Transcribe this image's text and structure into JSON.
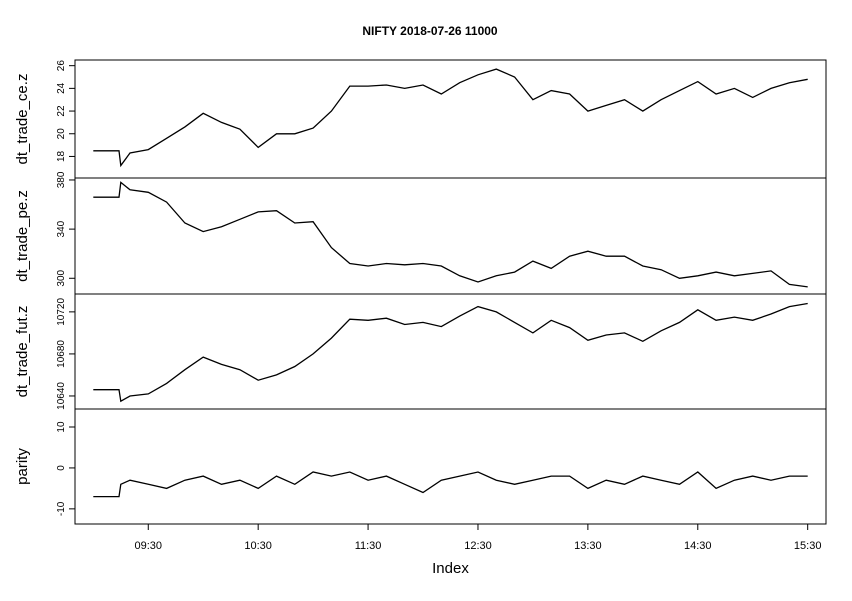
{
  "chart_data": [
    {
      "type": "line",
      "title": "NIFTY 2018-07-26 11000",
      "ylabel": "dt_trade_ce.z",
      "color": "#000000",
      "x": [
        "09:00",
        "09:14",
        "09:15",
        "09:20",
        "09:30",
        "09:40",
        "09:50",
        "10:00",
        "10:10",
        "10:20",
        "10:30",
        "10:40",
        "10:50",
        "11:00",
        "11:10",
        "11:20",
        "11:30",
        "11:40",
        "11:50",
        "12:00",
        "12:10",
        "12:20",
        "12:30",
        "12:40",
        "12:50",
        "13:00",
        "13:10",
        "13:20",
        "13:30",
        "13:40",
        "13:50",
        "14:00",
        "14:10",
        "14:20",
        "14:30",
        "14:40",
        "14:50",
        "15:00",
        "15:10",
        "15:20",
        "15:30"
      ],
      "values": [
        18.5,
        18.5,
        17.2,
        18.3,
        18.6,
        19.6,
        20.6,
        21.8,
        21.0,
        20.4,
        18.8,
        20.0,
        20.0,
        20.5,
        22.0,
        24.2,
        24.2,
        24.3,
        24.0,
        24.3,
        23.5,
        24.5,
        25.2,
        25.7,
        25.0,
        23.0,
        23.8,
        23.5,
        22.0,
        22.5,
        23.0,
        22.0,
        23.0,
        23.8,
        24.6,
        23.5,
        24.0,
        23.2,
        24.0,
        24.5,
        24.8
      ],
      "xlim": [
        "08:50",
        "15:40"
      ],
      "ylim": [
        16.1,
        26.5
      ],
      "yticks": [
        18,
        20,
        22,
        24,
        26
      ]
    },
    {
      "type": "line",
      "ylabel": "dt_trade_pe.z",
      "color": "#000000",
      "x": [
        "09:00",
        "09:14",
        "09:15",
        "09:20",
        "09:30",
        "09:40",
        "09:50",
        "10:00",
        "10:10",
        "10:20",
        "10:30",
        "10:40",
        "10:50",
        "11:00",
        "11:10",
        "11:20",
        "11:30",
        "11:40",
        "11:50",
        "12:00",
        "12:10",
        "12:20",
        "12:30",
        "12:40",
        "12:50",
        "13:00",
        "13:10",
        "13:20",
        "13:30",
        "13:40",
        "13:50",
        "14:00",
        "14:10",
        "14:20",
        "14:30",
        "14:40",
        "14:50",
        "15:00",
        "15:10",
        "15:20",
        "15:30"
      ],
      "values": [
        366,
        366,
        378,
        372,
        370,
        362,
        345,
        338,
        342,
        348,
        354,
        355,
        345,
        346,
        325,
        312,
        310,
        312,
        311,
        312,
        310,
        302,
        297,
        302,
        305,
        314,
        308,
        318,
        322,
        318,
        318,
        310,
        307,
        300,
        302,
        305,
        302,
        304,
        306,
        295,
        293
      ],
      "xlim": [
        "08:50",
        "15:40"
      ],
      "ylim": [
        287.2,
        381.6
      ],
      "yticks": [
        300,
        340,
        380
      ]
    },
    {
      "type": "line",
      "ylabel": "dt_trade_fut.z",
      "color": "#000000",
      "x": [
        "09:00",
        "09:14",
        "09:15",
        "09:20",
        "09:30",
        "09:40",
        "09:50",
        "10:00",
        "10:10",
        "10:20",
        "10:30",
        "10:40",
        "10:50",
        "11:00",
        "11:10",
        "11:20",
        "11:30",
        "11:40",
        "11:50",
        "12:00",
        "12:10",
        "12:20",
        "12:30",
        "12:40",
        "12:50",
        "13:00",
        "13:10",
        "13:20",
        "13:30",
        "13:40",
        "13:50",
        "14:00",
        "14:10",
        "14:20",
        "14:30",
        "14:40",
        "14:50",
        "15:00",
        "15:10",
        "15:20",
        "15:30"
      ],
      "values": [
        10646,
        10646,
        10635,
        10640,
        10642,
        10652,
        10665,
        10677,
        10670,
        10665,
        10655,
        10660,
        10668,
        10680,
        10695,
        10713,
        10712,
        10714,
        10708,
        10710,
        10706,
        10716,
        10725,
        10720,
        10710,
        10700,
        10712,
        10705,
        10693,
        10698,
        10700,
        10692,
        10702,
        10710,
        10722,
        10712,
        10715,
        10712,
        10718,
        10725,
        10728
      ],
      "xlim": [
        "08:50",
        "15:40"
      ],
      "ylim": [
        10627.6,
        10737
      ],
      "yticks": [
        10640,
        10680,
        10720
      ]
    },
    {
      "type": "line",
      "ylabel": "parity",
      "xlabel": "Index",
      "color": "#000000",
      "x": [
        "09:00",
        "09:14",
        "09:15",
        "09:20",
        "09:30",
        "09:40",
        "09:50",
        "10:00",
        "10:10",
        "10:20",
        "10:30",
        "10:40",
        "10:50",
        "11:00",
        "11:10",
        "11:20",
        "11:30",
        "11:40",
        "11:50",
        "12:00",
        "12:10",
        "12:20",
        "12:30",
        "12:40",
        "12:50",
        "13:00",
        "13:10",
        "13:20",
        "13:30",
        "13:40",
        "13:50",
        "14:00",
        "14:10",
        "14:20",
        "14:30",
        "14:40",
        "14:50",
        "15:00",
        "15:10",
        "15:20",
        "15:30"
      ],
      "values": [
        -7,
        -7,
        -4,
        -3,
        -4,
        -5,
        -3,
        -2,
        -4,
        -3,
        -5,
        -2,
        -4,
        -1,
        -2,
        -1,
        -3,
        -2,
        -4,
        -6,
        -3,
        -2,
        -1,
        -3,
        -4,
        -3,
        -2,
        -2,
        -5,
        -3,
        -4,
        -2,
        -3,
        -4,
        -1,
        -5,
        -3,
        -2,
        -3,
        -2,
        -2
      ],
      "xlim": [
        "08:50",
        "15:40"
      ],
      "ylim": [
        -13.7,
        14.4
      ],
      "yticks": [
        -10,
        0,
        10
      ],
      "xticks": [
        "09:30",
        "10:30",
        "11:30",
        "12:30",
        "13:30",
        "14:30",
        "15:30"
      ]
    }
  ]
}
